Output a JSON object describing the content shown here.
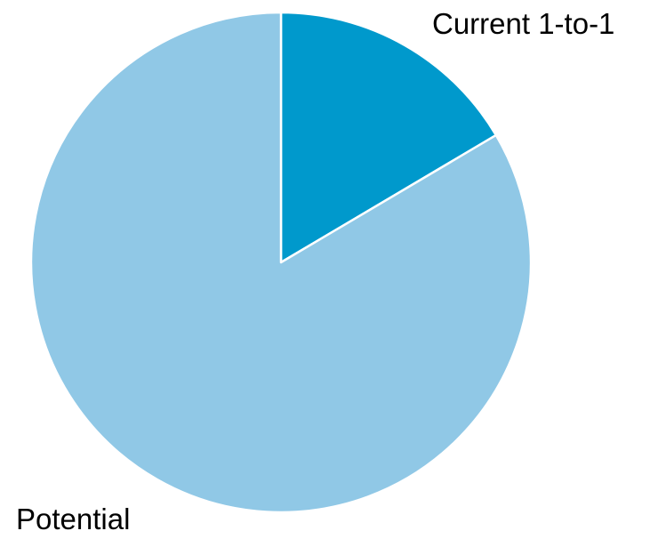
{
  "chart_data": {
    "type": "pie",
    "start_angle": "12 o'clock",
    "direction": "clockwise",
    "slices": [
      {
        "label": "Current 1-to-1",
        "value": 16.5,
        "color": "#0099CC"
      },
      {
        "label": "Potential",
        "value": 83.5,
        "color": "#90C8E6"
      }
    ],
    "slice_border_color": "#FFFFFF",
    "legend": "none"
  }
}
